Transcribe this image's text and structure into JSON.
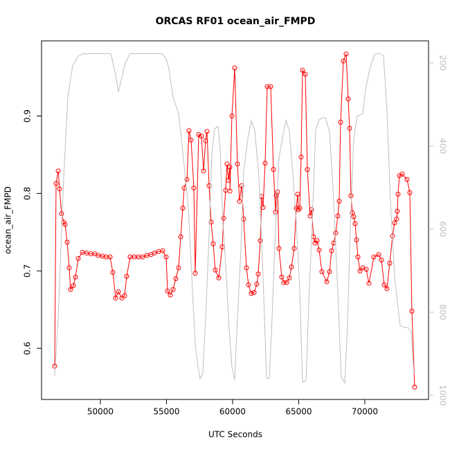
{
  "chart_data": {
    "type": "line",
    "title": "ORCAS RF01 ocean_air_FMPD",
    "x_label": "UTC Seconds",
    "y_label": "ocean_air_FMPD",
    "xlim": [
      45550,
      74820
    ],
    "xticks": [
      50000,
      55000,
      60000,
      65000,
      70000
    ],
    "ylim": [
      0.534,
      0.997
    ],
    "yticks": [
      0.6,
      0.7,
      0.8,
      0.9
    ],
    "y2lim": [
      1010,
      147
    ],
    "y2ticks": [
      200,
      400,
      600,
      800,
      1000
    ],
    "series": [
      {
        "color": "#ff0000",
        "markers": true,
        "axis": "y",
        "x": [
          46545,
          46650,
          46807,
          46911,
          47068,
          47225,
          47330,
          47487,
          47644,
          47749,
          47958,
          48116,
          48325,
          48640,
          48953,
          49268,
          49582,
          49843,
          50158,
          50420,
          50734,
          50943,
          51153,
          51362,
          51624,
          51833,
          51990,
          52252,
          52566,
          52880,
          53195,
          53508,
          53823,
          54085,
          54400,
          54713,
          54975,
          55080,
          55289,
          55499,
          55708,
          55917,
          56075,
          56232,
          56337,
          56546,
          56703,
          56860,
          57070,
          57174,
          57436,
          57645,
          57802,
          57960,
          58064,
          58221,
          58378,
          58535,
          58692,
          58954,
          59216,
          59320,
          59477,
          59582,
          59687,
          59791,
          59800,
          59948,
          60158,
          60367,
          60524,
          60681,
          60838,
          61048,
          61205,
          61414,
          61624,
          61833,
          61938,
          62095,
          62200,
          62304,
          62461,
          62618,
          62880,
          63090,
          63247,
          63299,
          63404,
          63509,
          63718,
          63875,
          64085,
          64294,
          64451,
          64661,
          64818,
          64923,
          64975,
          65080,
          65184,
          65289,
          65498,
          65655,
          65865,
          65969,
          66127,
          66231,
          66389,
          66546,
          66755,
          67122,
          67331,
          67488,
          67645,
          67802,
          67960,
          68064,
          68169,
          68378,
          68588,
          68745,
          68849,
          68954,
          69059,
          69163,
          69268,
          69373,
          69478,
          69635,
          69844,
          70106,
          70315,
          70682,
          71048,
          71258,
          71467,
          71676,
          71886,
          72095,
          72252,
          72409,
          72462,
          72514,
          72619,
          72828,
          73195,
          73404,
          73561,
          73770
        ],
        "values": [
          0.577,
          0.813,
          0.829,
          0.806,
          0.774,
          0.763,
          0.76,
          0.737,
          0.704,
          0.676,
          0.681,
          0.692,
          0.716,
          0.724,
          0.723,
          0.722,
          0.722,
          0.72,
          0.719,
          0.718,
          0.718,
          0.698,
          0.665,
          0.673,
          0.665,
          0.668,
          0.693,
          0.718,
          0.718,
          0.718,
          0.718,
          0.72,
          0.721,
          0.723,
          0.725,
          0.726,
          0.718,
          0.674,
          0.669,
          0.676,
          0.69,
          0.704,
          0.744,
          0.781,
          0.807,
          0.818,
          0.881,
          0.869,
          0.807,
          0.697,
          0.876,
          0.874,
          0.829,
          0.868,
          0.88,
          0.81,
          0.763,
          0.735,
          0.701,
          0.691,
          0.731,
          0.768,
          0.804,
          0.838,
          0.817,
          0.834,
          0.803,
          0.9,
          0.962,
          0.838,
          0.79,
          0.81,
          0.767,
          0.704,
          0.682,
          0.671,
          0.672,
          0.683,
          0.696,
          0.739,
          0.796,
          0.782,
          0.839,
          0.938,
          0.938,
          0.831,
          0.776,
          0.797,
          0.802,
          0.729,
          0.692,
          0.685,
          0.685,
          0.691,
          0.705,
          0.729,
          0.781,
          0.799,
          0.779,
          0.781,
          0.847,
          0.959,
          0.954,
          0.831,
          0.771,
          0.779,
          0.744,
          0.736,
          0.739,
          0.727,
          0.699,
          0.686,
          0.699,
          0.726,
          0.736,
          0.749,
          0.771,
          0.79,
          0.892,
          0.971,
          0.98,
          0.922,
          0.884,
          0.797,
          0.775,
          0.77,
          0.761,
          0.74,
          0.718,
          0.7,
          0.704,
          0.702,
          0.684,
          0.718,
          0.721,
          0.714,
          0.682,
          0.677,
          0.71,
          0.745,
          0.762,
          0.767,
          0.777,
          0.799,
          0.823,
          0.825,
          0.818,
          0.801,
          0.648,
          0.55
        ]
      },
      {
        "color": "#bebebe",
        "markers": false,
        "axis": "y2",
        "x": [
          46545,
          46807,
          47225,
          47539,
          47905,
          48273,
          48692,
          50786,
          50943,
          51205,
          51362,
          51624,
          51886,
          52252,
          54661,
          54975,
          55185,
          55499,
          55917,
          56127,
          56337,
          56651,
          56965,
          57174,
          57384,
          57541,
          57750,
          57960,
          58221,
          58431,
          58640,
          58902,
          59059,
          59268,
          59530,
          59739,
          59948,
          60158,
          60367,
          60629,
          60838,
          61152,
          61414,
          61676,
          61990,
          62304,
          62566,
          62775,
          62985,
          63247,
          63509,
          63771,
          64033,
          64294,
          64556,
          64818,
          65080,
          65289,
          65551,
          65760,
          66022,
          66284,
          66546,
          66808,
          67017,
          67331,
          67592,
          67907,
          68221,
          68483,
          68692,
          68902,
          69163,
          69425,
          69844,
          70053,
          70368,
          70734,
          71100,
          71415,
          71676,
          71938,
          72252,
          72671,
          72880,
          73299,
          73509,
          73718
        ],
        "values": [
          953,
          815,
          477,
          282,
          207,
          185,
          178,
          178,
          198,
          238,
          270,
          235,
          200,
          178,
          178,
          190,
          215,
          282,
          323,
          382,
          448,
          548,
          748,
          877,
          932,
          960,
          947,
          815,
          615,
          418,
          358,
          353,
          408,
          582,
          715,
          840,
          932,
          963,
          815,
          648,
          462,
          382,
          340,
          362,
          473,
          715,
          957,
          960,
          815,
          598,
          428,
          382,
          337,
          365,
          465,
          582,
          748,
          968,
          965,
          782,
          582,
          362,
          337,
          332,
          332,
          365,
          498,
          715,
          957,
          970,
          832,
          598,
          382,
          328,
          323,
          265,
          215,
          180,
          177,
          183,
          315,
          532,
          715,
          832,
          835,
          838,
          848,
          948
        ]
      }
    ]
  }
}
